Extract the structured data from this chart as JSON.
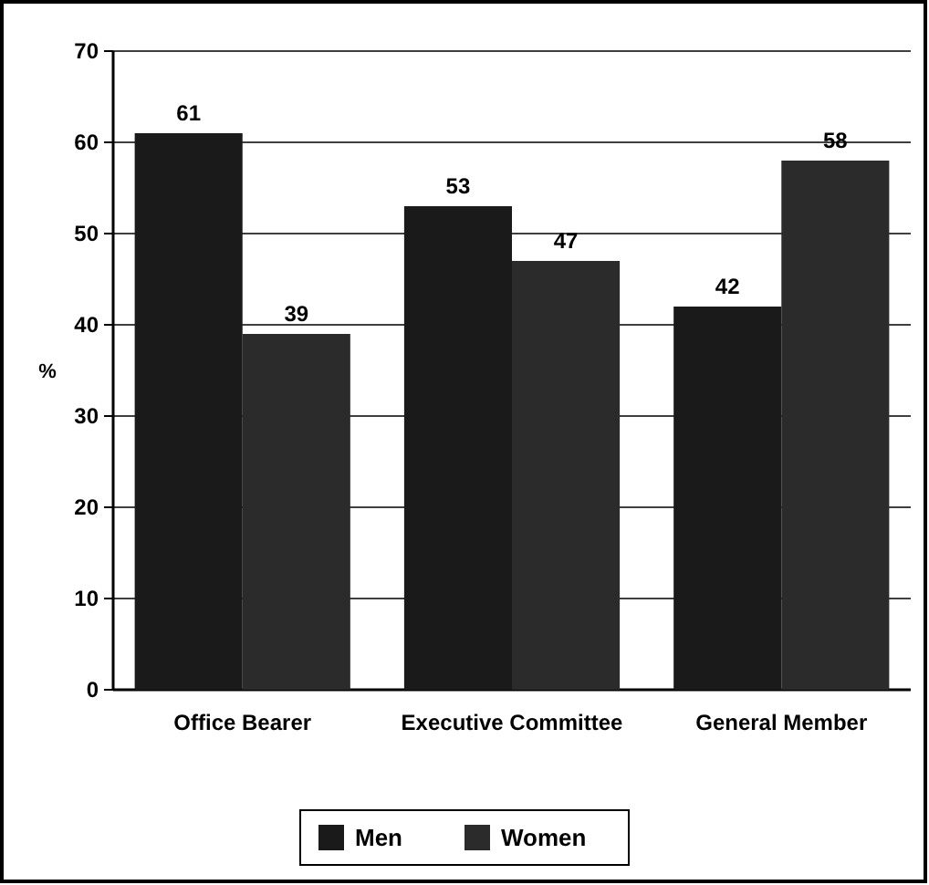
{
  "chart_data": {
    "type": "bar",
    "categories": [
      "Office Bearer",
      "Executive Committee",
      "General Member"
    ],
    "series": [
      {
        "name": "Men",
        "color": "#1a1a1a",
        "values": [
          61,
          53,
          42
        ]
      },
      {
        "name": "Women",
        "color": "#2b2b2b",
        "values": [
          39,
          47,
          58
        ]
      }
    ],
    "ylabel": "%",
    "ylim": [
      0,
      70
    ],
    "yticks": [
      0,
      10,
      20,
      30,
      40,
      50,
      60,
      70
    ],
    "grid": "y",
    "legend": "bottom",
    "data_labels": true
  }
}
